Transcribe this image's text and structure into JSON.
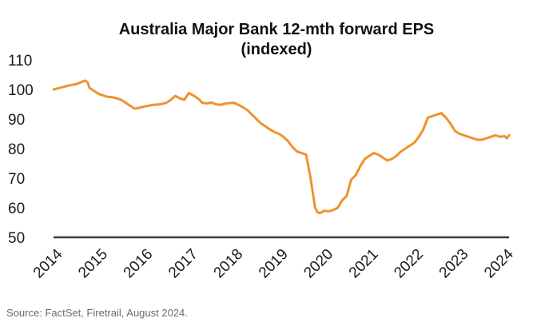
{
  "chart_data": {
    "type": "line",
    "title": "Australia Major Bank 12-mth forward EPS",
    "subtitle": "(indexed)",
    "xlabel": "",
    "ylabel": "",
    "ylim": [
      50,
      110
    ],
    "xlim": [
      2014,
      2024.1
    ],
    "grid": false,
    "y_ticks": [
      "110",
      "100",
      "90",
      "80",
      "70",
      "60",
      "50"
    ],
    "x_ticks": [
      "2014",
      "2015",
      "2016",
      "2017",
      "2018",
      "2019",
      "2020",
      "2021",
      "2022",
      "2023",
      "2024"
    ],
    "series": [
      {
        "color": "#f0922e",
        "x": [
          2014.0,
          2014.1,
          2014.2,
          2014.3,
          2014.4,
          2014.5,
          2014.6,
          2014.7,
          2014.75,
          2014.8,
          2014.85,
          2014.9,
          2015.0,
          2015.1,
          2015.2,
          2015.3,
          2015.4,
          2015.5,
          2015.6,
          2015.7,
          2015.8,
          2015.9,
          2016.0,
          2016.1,
          2016.2,
          2016.3,
          2016.4,
          2016.5,
          2016.6,
          2016.7,
          2016.8,
          2016.9,
          2017.0,
          2017.1,
          2017.2,
          2017.3,
          2017.4,
          2017.5,
          2017.6,
          2017.7,
          2017.8,
          2017.9,
          2018.0,
          2018.1,
          2018.2,
          2018.3,
          2018.4,
          2018.5,
          2018.6,
          2018.7,
          2018.8,
          2018.9,
          2019.0,
          2019.1,
          2019.2,
          2019.3,
          2019.4,
          2019.5,
          2019.6,
          2019.7,
          2019.8,
          2019.85,
          2019.9,
          2019.95,
          2020.0,
          2020.1,
          2020.2,
          2020.3,
          2020.4,
          2020.5,
          2020.6,
          2020.7,
          2020.8,
          2020.9,
          2021.0,
          2021.1,
          2021.2,
          2021.3,
          2021.4,
          2021.5,
          2021.6,
          2021.7,
          2021.8,
          2021.9,
          2022.0,
          2022.1,
          2022.2,
          2022.3,
          2022.4,
          2022.5,
          2022.6,
          2022.7,
          2022.8,
          2022.9,
          2023.0,
          2023.1,
          2023.2,
          2023.3,
          2023.4,
          2023.5,
          2023.6,
          2023.7,
          2023.8,
          2023.9,
          2024.0,
          2024.05,
          2024.1
        ],
        "values": [
          100.0,
          100.4,
          100.8,
          101.2,
          101.5,
          101.8,
          102.4,
          103.0,
          102.5,
          100.5,
          100.0,
          99.5,
          98.5,
          98.0,
          97.5,
          97.4,
          97.0,
          96.5,
          95.5,
          94.5,
          93.5,
          93.8,
          94.2,
          94.5,
          94.8,
          94.9,
          95.1,
          95.5,
          96.5,
          97.8,
          97.0,
          96.5,
          98.8,
          98.0,
          97.0,
          95.5,
          95.3,
          95.6,
          95.0,
          94.8,
          95.2,
          95.4,
          95.5,
          94.8,
          94.0,
          93.0,
          91.5,
          90.0,
          88.5,
          87.5,
          86.5,
          85.6,
          85.0,
          84.0,
          82.5,
          80.5,
          79.0,
          78.5,
          78.0,
          70.0,
          60.0,
          58.5,
          58.2,
          58.5,
          59.0,
          58.8,
          59.2,
          60.0,
          62.5,
          64.0,
          69.5,
          71.0,
          74.0,
          76.5,
          77.5,
          78.5,
          78.0,
          77.0,
          76.0,
          76.5,
          77.5,
          79.0,
          80.0,
          81.0,
          82.0,
          84.0,
          86.5,
          90.5,
          91.0,
          91.5,
          92.0,
          90.5,
          88.5,
          86.0,
          85.0,
          84.5,
          84.0,
          83.5,
          83.0,
          83.0,
          83.5,
          84.0,
          84.5,
          84.0,
          84.2,
          83.5,
          84.5
        ]
      }
    ]
  },
  "source": "Source: FactSet, Firetrail, August 2024."
}
